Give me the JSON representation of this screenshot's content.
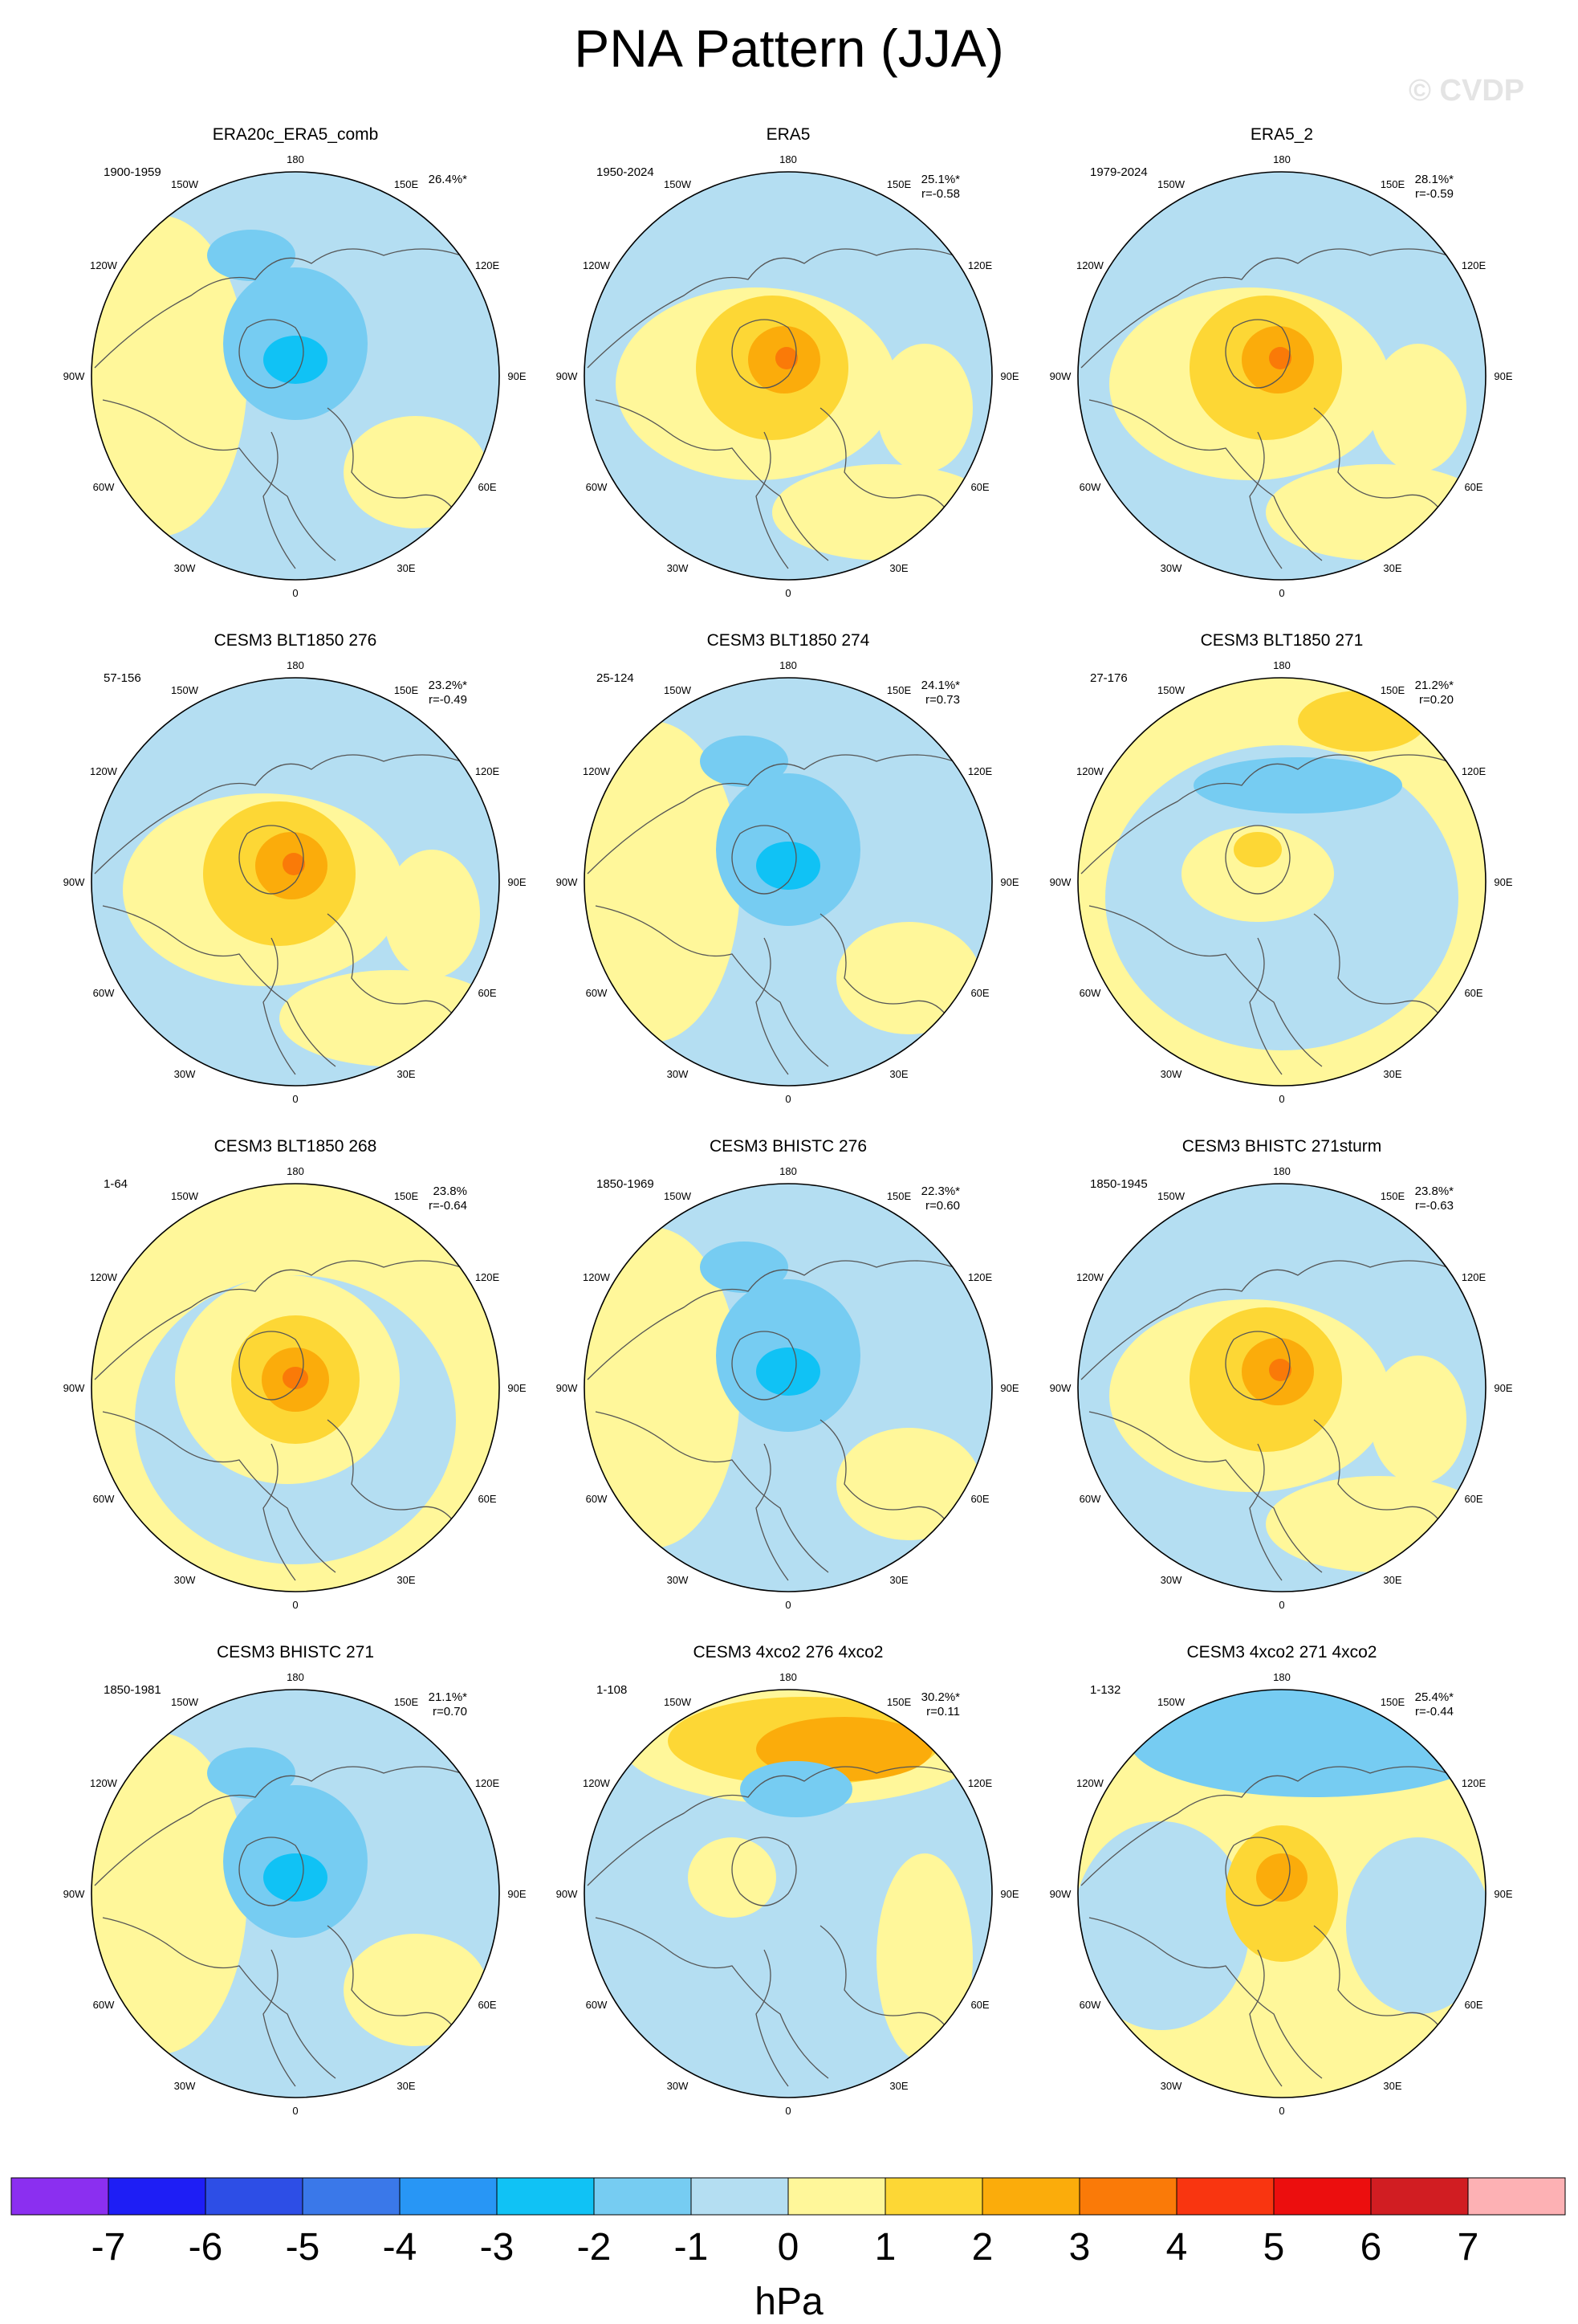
{
  "title": "PNA Pattern (JJA)",
  "watermark": "© CVDP",
  "longitude_labels": [
    "180",
    "150E",
    "120E",
    "90E",
    "60E",
    "30E",
    "0",
    "30W",
    "60W",
    "90W",
    "120W",
    "150W"
  ],
  "panels": [
    {
      "title": "ERA20c_ERA5_comb",
      "period": "1900-1959",
      "pct": "26.4%*",
      "r": "",
      "pattern": "neg"
    },
    {
      "title": "ERA5",
      "period": "1950-2024",
      "pct": "25.1%*",
      "r": "r=-0.58",
      "pattern": "pos"
    },
    {
      "title": "ERA5_2",
      "period": "1979-2024",
      "pct": "28.1%*",
      "r": "r=-0.59",
      "pattern": "pos"
    },
    {
      "title": "CESM3 BLT1850 276",
      "period": "57-156",
      "pct": "23.2%*",
      "r": "r=-0.49",
      "pattern": "pos"
    },
    {
      "title": "CESM3 BLT1850 274",
      "period": "25-124",
      "pct": "24.1%*",
      "r": "r=0.73",
      "pattern": "neg"
    },
    {
      "title": "CESM3 BLT1850 271",
      "period": "27-176",
      "pct": "21.2%*",
      "r": "r=0.20",
      "pattern": "weakpos"
    },
    {
      "title": "CESM3 BLT1850 268",
      "period": "1-64",
      "pct": "23.8%",
      "r": "r=-0.64",
      "pattern": "strongpos"
    },
    {
      "title": "CESM3 BHISTC 276",
      "period": "1850-1969",
      "pct": "22.3%*",
      "r": "r=0.60",
      "pattern": "neg"
    },
    {
      "title": "CESM3 BHISTC 271sturm",
      "period": "1850-1945",
      "pct": "23.8%*",
      "r": "r=-0.63",
      "pattern": "pos"
    },
    {
      "title": "CESM3 BHISTC 271",
      "period": "1850-1981",
      "pct": "21.1%*",
      "r": "r=0.70",
      "pattern": "neg"
    },
    {
      "title": "CESM3 4xco2 276 4xco2",
      "period": "1-108",
      "pct": "30.2%*",
      "r": "r=0.11",
      "pattern": "pacpos"
    },
    {
      "title": "CESM3 4xco2 271 4xco2",
      "period": "1-132",
      "pct": "25.4%*",
      "r": "r=-0.44",
      "pattern": "pacneg"
    }
  ],
  "colorbar": {
    "colors": [
      "#8b2ff0",
      "#1e1ef5",
      "#2d4ee6",
      "#3a78e9",
      "#2896f5",
      "#10c2f5",
      "#76ccf2",
      "#b4def2",
      "#fff79a",
      "#fdd735",
      "#fbac0b",
      "#fa7a08",
      "#f93510",
      "#ec0e0e",
      "#d11d22",
      "#fdb1b4"
    ],
    "labels": [
      "-7",
      "-6",
      "-5",
      "-4",
      "-3",
      "-2",
      "-1",
      "0",
      "1",
      "2",
      "3",
      "4",
      "5",
      "6",
      "7"
    ],
    "units": "hPa"
  }
}
